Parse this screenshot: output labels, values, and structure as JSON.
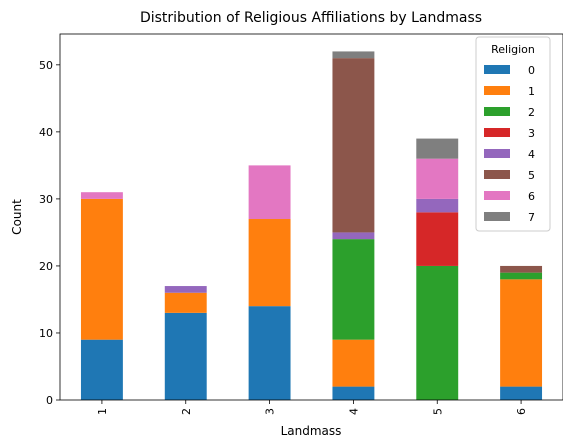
{
  "chart_data": {
    "type": "bar",
    "stacked": true,
    "title": "Distribution of Religious Affiliations by Landmass",
    "xlabel": "Landmass",
    "ylabel": "Count",
    "categories": [
      "1",
      "2",
      "3",
      "4",
      "5",
      "6"
    ],
    "ylim": [
      0,
      54.6
    ],
    "yticks": [
      0,
      10,
      20,
      30,
      40,
      50
    ],
    "grid": false,
    "legend": {
      "title": "Religion",
      "placement": "top-right"
    },
    "series": [
      {
        "name": "0",
        "color": "#1f77b4",
        "values": [
          9,
          13,
          14,
          2,
          0,
          2
        ]
      },
      {
        "name": "1",
        "color": "#ff7f0e",
        "values": [
          21,
          3,
          13,
          7,
          0,
          16
        ]
      },
      {
        "name": "2",
        "color": "#2ca02c",
        "values": [
          0,
          0,
          0,
          15,
          20,
          1
        ]
      },
      {
        "name": "3",
        "color": "#d62728",
        "values": [
          0,
          0,
          0,
          0,
          8,
          0
        ]
      },
      {
        "name": "4",
        "color": "#9467bd",
        "values": [
          0,
          1,
          0,
          1,
          2,
          0
        ]
      },
      {
        "name": "5",
        "color": "#8c564b",
        "values": [
          0,
          0,
          0,
          26,
          0,
          1
        ]
      },
      {
        "name": "6",
        "color": "#e377c2",
        "values": [
          1,
          0,
          8,
          0,
          6,
          0
        ]
      },
      {
        "name": "7",
        "color": "#7f7f7f",
        "values": [
          0,
          0,
          0,
          1,
          3,
          0
        ]
      }
    ]
  }
}
